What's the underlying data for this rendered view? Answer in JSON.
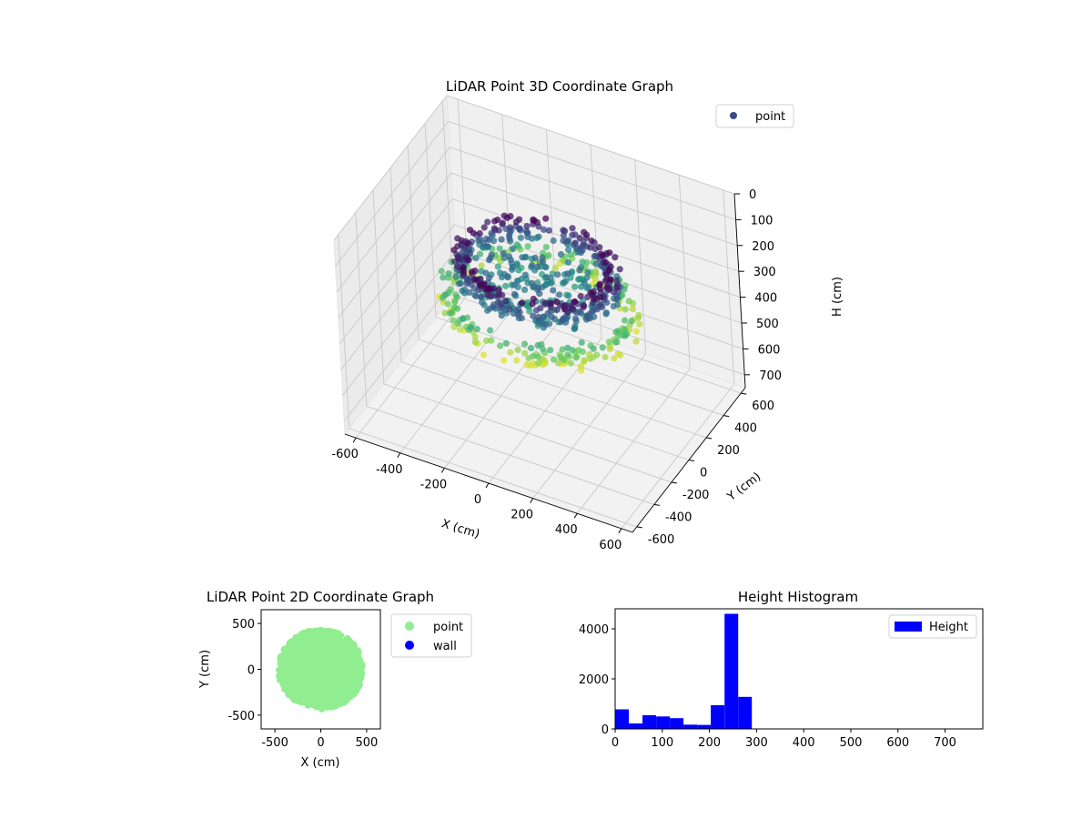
{
  "chart_data": [
    {
      "type": "scatter",
      "title": "LiDAR Point 3D Coordinate Graph",
      "xlabel": "X (cm)",
      "ylabel": "Y (cm)",
      "zlabel": "H (cm)",
      "xlim": [
        -650,
        650
      ],
      "ylim": [
        -650,
        650
      ],
      "zlim": [
        0,
        750
      ],
      "z_inverted": true,
      "xticks": [
        -600,
        -400,
        -200,
        0,
        200,
        400,
        600
      ],
      "yticks": [
        -600,
        -400,
        -200,
        0,
        200,
        400,
        600
      ],
      "zticks": [
        0,
        100,
        200,
        300,
        400,
        500,
        600,
        700
      ],
      "legend": {
        "entries": [
          "point"
        ],
        "placement": "top-right"
      },
      "colormap": "viridis",
      "grid": true,
      "series": [
        {
          "name": "point",
          "color": "#3b4a8c",
          "structure": [
            {
              "shape": "ring",
              "radius": 320,
              "h_min": 160,
              "h_max": 260,
              "count": 360
            },
            {
              "shape": "ring",
              "radius": 390,
              "h_min": 300,
              "h_max": 380,
              "count": 220
            },
            {
              "shape": "disk",
              "radius": 260,
              "h_min": 230,
              "h_max": 300,
              "count": 160
            }
          ]
        }
      ]
    },
    {
      "type": "scatter",
      "title": "LiDAR Point 2D Coordinate Graph",
      "xlabel": "X (cm)",
      "ylabel": "Y (cm)",
      "xlim": [
        -650,
        650
      ],
      "ylim": [
        -650,
        650
      ],
      "xticks": [
        -500,
        0,
        500
      ],
      "yticks": [
        -500,
        0,
        500
      ],
      "legend": {
        "entries": [
          "point",
          "wall"
        ],
        "placement": "outside-right"
      },
      "series": [
        {
          "name": "point",
          "color": "#90ee90",
          "center": [
            0,
            0
          ],
          "radius_x": 500,
          "radius_y": 430,
          "count": 900
        },
        {
          "name": "wall",
          "color": "#0000ff",
          "count": 0
        }
      ]
    },
    {
      "type": "bar",
      "title": "Height Histogram",
      "xlabel": "",
      "ylabel": "",
      "xlim": [
        0,
        780
      ],
      "ylim": [
        0,
        4800
      ],
      "xticks": [
        0,
        100,
        200,
        300,
        400,
        500,
        600,
        700
      ],
      "yticks": [
        0,
        2000,
        4000
      ],
      "legend": {
        "entries": [
          "Height"
        ],
        "placement": "top-right"
      },
      "series": [
        {
          "name": "Height",
          "color": "#0000ff",
          "bin_edges": [
            0,
            29,
            58,
            87,
            116,
            145,
            174,
            203,
            232,
            261,
            290
          ],
          "values": [
            780,
            220,
            550,
            500,
            430,
            170,
            160,
            950,
            4600,
            1280
          ]
        }
      ]
    }
  ]
}
